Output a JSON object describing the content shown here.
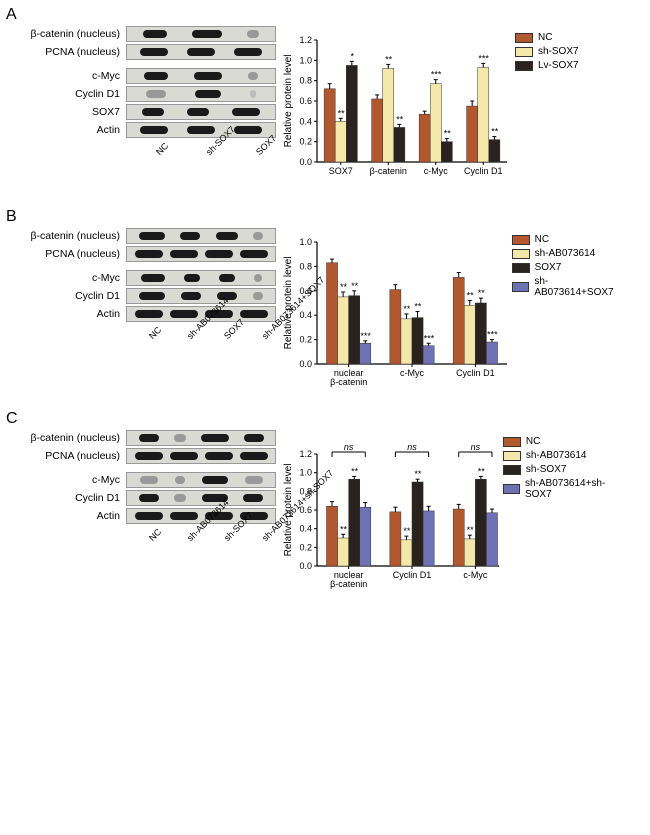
{
  "colors": {
    "nc": "#b1582e",
    "yellow": "#f3e7a9",
    "dark": "#2a221e",
    "blue": "#6e72b5",
    "axis": "#000000",
    "bg": "#ffffff"
  },
  "font": {
    "axis_label": 10,
    "tick": 9,
    "sig": 9
  },
  "panelA": {
    "label": "A",
    "blot_labels": [
      "β-catenin (nucleus)",
      "PCNA (nucleus)",
      "",
      "c-Myc",
      "Cyclin D1",
      "SOX7",
      "Actin"
    ],
    "lane_labels": [
      "NC",
      "sh-SOX7",
      "SOX7"
    ],
    "legend": [
      {
        "label": "NC",
        "colorKey": "nc"
      },
      {
        "label": "sh-SOX7",
        "colorKey": "yellow"
      },
      {
        "label": "Lv-SOX7",
        "colorKey": "dark"
      }
    ],
    "chart": {
      "ylabel": "Relative protein level",
      "ylim": [
        0,
        1.2
      ],
      "yticks": [
        0.0,
        0.2,
        0.4,
        0.6,
        0.8,
        1.0,
        1.2
      ],
      "categories": [
        "SOX7",
        "β-catenin",
        "c-Myc",
        "Cyclin D1"
      ],
      "series": [
        {
          "colorKey": "nc",
          "values": [
            0.72,
            0.62,
            0.47,
            0.55
          ],
          "err": [
            0.05,
            0.04,
            0.03,
            0.05
          ],
          "sig": [
            "",
            "",
            "",
            ""
          ]
        },
        {
          "colorKey": "yellow",
          "values": [
            0.4,
            0.92,
            0.77,
            0.93
          ],
          "err": [
            0.03,
            0.04,
            0.04,
            0.04
          ],
          "sig": [
            "**",
            "**",
            "***",
            "***"
          ]
        },
        {
          "colorKey": "dark",
          "values": [
            0.95,
            0.34,
            0.2,
            0.22
          ],
          "err": [
            0.04,
            0.03,
            0.03,
            0.03
          ],
          "sig": [
            "*",
            "**",
            "**",
            "**"
          ]
        }
      ]
    }
  },
  "panelB": {
    "label": "B",
    "blot_labels": [
      "β-catenin (nucleus)",
      "PCNA (nucleus)",
      "",
      "c-Myc",
      "Cyclin D1",
      "Actin"
    ],
    "lane_labels": [
      "NC",
      "sh-AB073614",
      "SOX7",
      "sh-AB073614+SOX7"
    ],
    "legend": [
      {
        "label": "NC",
        "colorKey": "nc"
      },
      {
        "label": "sh-AB073614",
        "colorKey": "yellow"
      },
      {
        "label": "SOX7",
        "colorKey": "dark"
      },
      {
        "label": "sh-AB073614+SOX7",
        "colorKey": "blue"
      }
    ],
    "chart": {
      "ylabel": "Relative protein level",
      "ylim": [
        0,
        1.0
      ],
      "yticks": [
        0.0,
        0.2,
        0.4,
        0.6,
        0.8,
        1.0
      ],
      "categories": [
        "nuclear\nβ-catenin",
        "c-Myc",
        "Cyclin D1"
      ],
      "series": [
        {
          "colorKey": "nc",
          "values": [
            0.83,
            0.61,
            0.71
          ],
          "err": [
            0.03,
            0.04,
            0.04
          ],
          "sig": [
            "",
            "",
            ""
          ]
        },
        {
          "colorKey": "yellow",
          "values": [
            0.55,
            0.37,
            0.48
          ],
          "err": [
            0.04,
            0.04,
            0.04
          ],
          "sig": [
            "**",
            "**",
            "**"
          ]
        },
        {
          "colorKey": "dark",
          "values": [
            0.56,
            0.38,
            0.5
          ],
          "err": [
            0.04,
            0.05,
            0.04
          ],
          "sig": [
            "**",
            "**",
            "**"
          ]
        },
        {
          "colorKey": "blue",
          "values": [
            0.17,
            0.15,
            0.18
          ],
          "err": [
            0.02,
            0.02,
            0.02
          ],
          "sig": [
            "***",
            "***",
            "***"
          ]
        }
      ]
    }
  },
  "panelC": {
    "label": "C",
    "blot_labels": [
      "β-catenin (nucleus)",
      "PCNA (nucleus)",
      "",
      "c-Myc",
      "Cyclin D1",
      "Actin"
    ],
    "lane_labels": [
      "NC",
      "sh-AB073614",
      "sh-SOX7",
      "sh-AB073614+sh-SOX7"
    ],
    "legend": [
      {
        "label": "NC",
        "colorKey": "nc"
      },
      {
        "label": "sh-AB073614",
        "colorKey": "yellow"
      },
      {
        "label": "sh-SOX7",
        "colorKey": "dark"
      },
      {
        "label": "sh-AB073614+sh-SOX7",
        "colorKey": "blue"
      }
    ],
    "chart": {
      "ylabel": "Relative protein level",
      "ylim": [
        0,
        1.2
      ],
      "yticks": [
        0.0,
        0.2,
        0.4,
        0.6,
        0.8,
        1.0,
        1.2
      ],
      "categories": [
        "nuclear\nβ-catenin",
        "Cyclin D1",
        "c-Myc"
      ],
      "series": [
        {
          "colorKey": "nc",
          "values": [
            0.64,
            0.58,
            0.61
          ],
          "err": [
            0.05,
            0.05,
            0.05
          ],
          "sig": [
            "",
            "",
            ""
          ]
        },
        {
          "colorKey": "yellow",
          "values": [
            0.3,
            0.28,
            0.29
          ],
          "err": [
            0.04,
            0.04,
            0.04
          ],
          "sig": [
            "**",
            "**",
            "**"
          ]
        },
        {
          "colorKey": "dark",
          "values": [
            0.93,
            0.9,
            0.93
          ],
          "err": [
            0.03,
            0.03,
            0.03
          ],
          "sig": [
            "**",
            "**",
            "**"
          ]
        },
        {
          "colorKey": "blue",
          "values": [
            0.63,
            0.59,
            0.57
          ],
          "err": [
            0.05,
            0.05,
            0.04
          ],
          "sig": [
            "",
            "",
            ""
          ]
        }
      ],
      "ns_brackets": [
        {
          "cat": 0,
          "label": "ns"
        },
        {
          "cat": 1,
          "label": "ns"
        },
        {
          "cat": 2,
          "label": "ns"
        }
      ]
    }
  },
  "blot_bands": {
    "A": [
      [
        {
          "w": 24,
          "i": 1
        },
        {
          "w": 30,
          "i": 1
        },
        {
          "w": 12,
          "i": 0
        }
      ],
      [
        {
          "w": 28,
          "i": 1
        },
        {
          "w": 28,
          "i": 1
        },
        {
          "w": 28,
          "i": 1
        }
      ],
      null,
      [
        {
          "w": 24,
          "i": 1
        },
        {
          "w": 28,
          "i": 1
        },
        {
          "w": 10,
          "i": 0
        }
      ],
      [
        {
          "w": 20,
          "i": 0
        },
        {
          "w": 26,
          "i": 1
        },
        {
          "w": 6,
          "i": -1
        }
      ],
      [
        {
          "w": 22,
          "i": 1
        },
        {
          "w": 22,
          "i": 1
        },
        {
          "w": 28,
          "i": 1
        }
      ],
      [
        {
          "w": 28,
          "i": 1
        },
        {
          "w": 28,
          "i": 1
        },
        {
          "w": 28,
          "i": 1
        }
      ]
    ],
    "B": [
      [
        {
          "w": 26,
          "i": 1
        },
        {
          "w": 20,
          "i": 1
        },
        {
          "w": 22,
          "i": 1
        },
        {
          "w": 10,
          "i": 0
        }
      ],
      [
        {
          "w": 28,
          "i": 1
        },
        {
          "w": 28,
          "i": 1
        },
        {
          "w": 28,
          "i": 1
        },
        {
          "w": 28,
          "i": 1
        }
      ],
      null,
      [
        {
          "w": 24,
          "i": 1
        },
        {
          "w": 16,
          "i": 1
        },
        {
          "w": 16,
          "i": 1
        },
        {
          "w": 8,
          "i": 0
        }
      ],
      [
        {
          "w": 26,
          "i": 1
        },
        {
          "w": 20,
          "i": 1
        },
        {
          "w": 20,
          "i": 1
        },
        {
          "w": 10,
          "i": 0
        }
      ],
      [
        {
          "w": 28,
          "i": 1
        },
        {
          "w": 28,
          "i": 1
        },
        {
          "w": 28,
          "i": 1
        },
        {
          "w": 28,
          "i": 1
        }
      ]
    ],
    "C": [
      [
        {
          "w": 20,
          "i": 1
        },
        {
          "w": 12,
          "i": 0
        },
        {
          "w": 28,
          "i": 1
        },
        {
          "w": 20,
          "i": 1
        }
      ],
      [
        {
          "w": 28,
          "i": 1
        },
        {
          "w": 28,
          "i": 1
        },
        {
          "w": 28,
          "i": 1
        },
        {
          "w": 28,
          "i": 1
        }
      ],
      null,
      [
        {
          "w": 18,
          "i": 0
        },
        {
          "w": 10,
          "i": 0
        },
        {
          "w": 26,
          "i": 1
        },
        {
          "w": 18,
          "i": 0
        }
      ],
      [
        {
          "w": 20,
          "i": 1
        },
        {
          "w": 12,
          "i": 0
        },
        {
          "w": 26,
          "i": 1
        },
        {
          "w": 20,
          "i": 1
        }
      ],
      [
        {
          "w": 28,
          "i": 1
        },
        {
          "w": 28,
          "i": 1
        },
        {
          "w": 28,
          "i": 1
        },
        {
          "w": 28,
          "i": 1
        }
      ]
    ]
  }
}
